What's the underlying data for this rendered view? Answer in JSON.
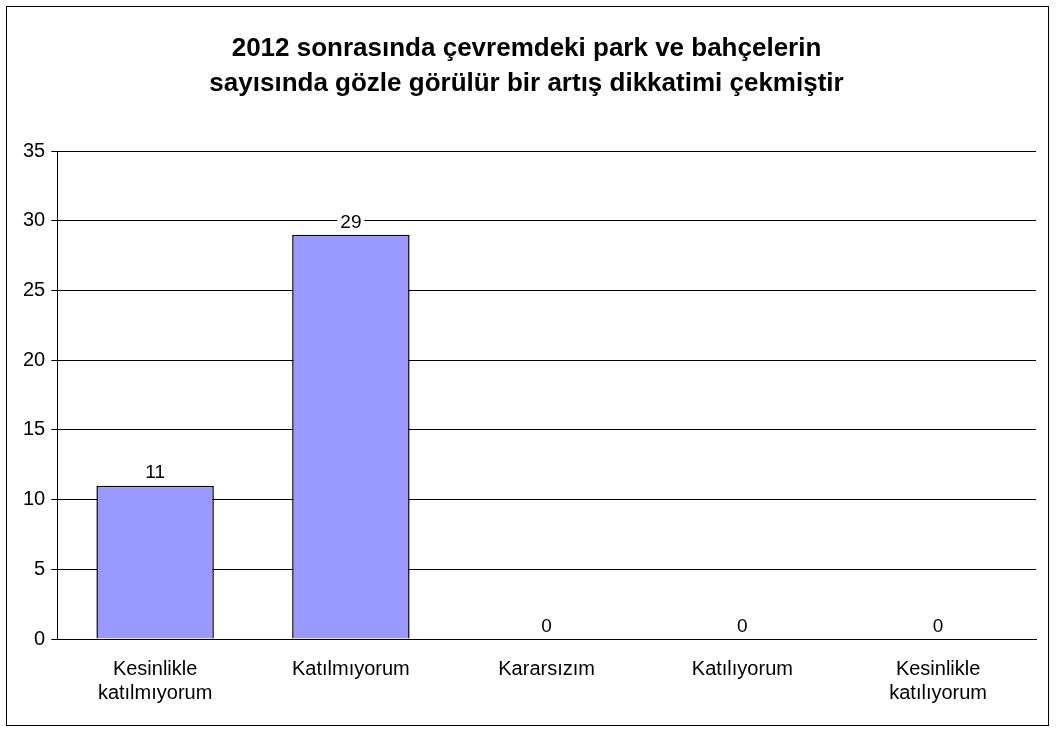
{
  "chart_data": {
    "type": "bar",
    "title": "2012 sonrasında çevremdeki park ve bahçelerin\nsayısında gözle görülür bir artış dikkatimi çekmiştir",
    "categories": [
      "Kesinlikle katılmıyorum",
      "Katılmıyorum",
      "Kararsızım",
      "Katılıyorum",
      "Kesinlikle katılıyorum"
    ],
    "values": [
      11,
      29,
      0,
      0,
      0
    ],
    "color": "#9999ff",
    "ylim": [
      0,
      35
    ],
    "yticks": [
      0,
      5,
      10,
      15,
      20,
      25,
      30,
      35
    ],
    "grid": "y",
    "data_labels": true,
    "legend": false
  }
}
